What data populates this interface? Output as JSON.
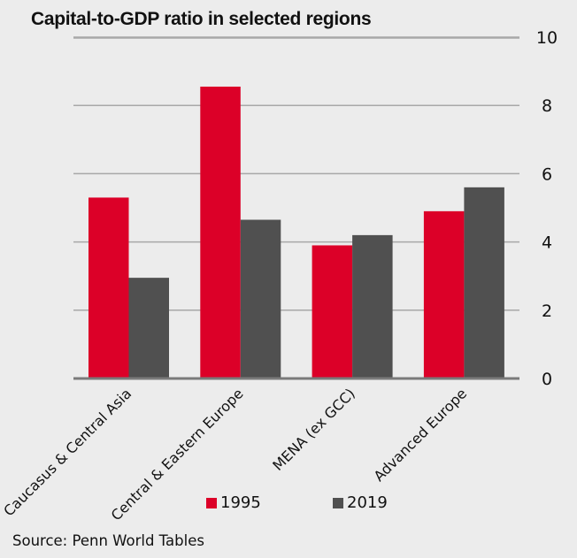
{
  "chart_data": {
    "type": "bar",
    "title": "Capital-to-GDP ratio in selected regions",
    "xlabel": "",
    "ylabel": "",
    "categories": [
      "Caucasus & Central Asia",
      "Central & Eastern Europe",
      "MENA (ex GCC)",
      "Advanced Europe"
    ],
    "series": [
      {
        "name": "1995",
        "color": "#dc0028",
        "values": [
          5.3,
          8.55,
          3.9,
          4.9
        ]
      },
      {
        "name": "2019",
        "color": "#505050",
        "values": [
          2.95,
          4.65,
          4.2,
          5.6
        ]
      }
    ],
    "ylim": [
      0,
      10
    ],
    "yticks": [
      0,
      2,
      4,
      6,
      8,
      10
    ],
    "ytick_labels": [
      "0",
      "2",
      "4",
      "6",
      "8",
      "10"
    ],
    "yaxis_side": "right",
    "grid": true,
    "legend_position": "bottom",
    "source": "Source: Penn World Tables"
  }
}
